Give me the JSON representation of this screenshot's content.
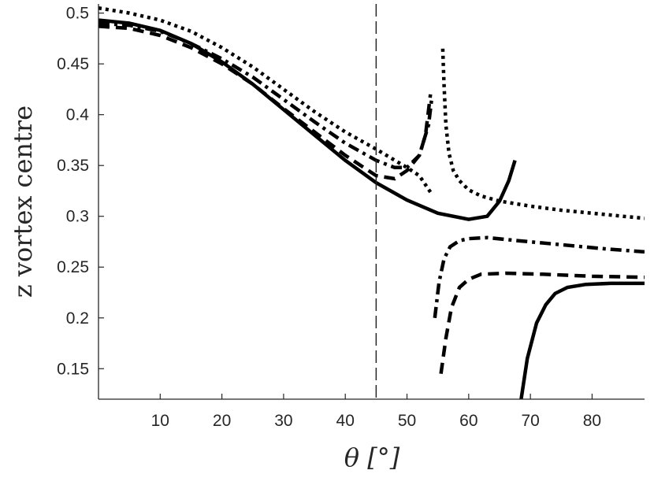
{
  "chart_data": {
    "type": "line",
    "title": "",
    "xlabel": "θ [°]",
    "ylabel": "z vortex centre",
    "xlim": [
      0,
      88.5
    ],
    "ylim": [
      0.12,
      0.509
    ],
    "xticks": [
      10,
      20,
      30,
      40,
      50,
      60,
      70,
      80
    ],
    "yticks": [
      0.15,
      0.2,
      0.25,
      0.3,
      0.35,
      0.4,
      0.45,
      0.5
    ],
    "ytick_labels": [
      "0.15",
      "0.2",
      "0.25",
      "0.3",
      "0.35",
      "0.4",
      "0.45",
      "0.5"
    ],
    "grid": false,
    "reference_line": {
      "x": 45,
      "style": "dashed-thin"
    },
    "series": [
      {
        "name": "solid",
        "style": "solid",
        "color": "#000000",
        "branches": [
          {
            "x": [
              0,
              5,
              10,
              15,
              20,
              25,
              30,
              35,
              40,
              45,
              50,
              55,
              60,
              63,
              65,
              66.5,
              67.5
            ],
            "y": [
              0.493,
              0.49,
              0.483,
              0.47,
              0.452,
              0.43,
              0.405,
              0.38,
              0.355,
              0.333,
              0.316,
              0.303,
              0.297,
              0.3,
              0.315,
              0.335,
              0.355
            ]
          },
          {
            "x": [
              68.5,
              69.5,
              71,
              72.5,
              74,
              76,
              79,
              83,
              88.5
            ],
            "y": [
              0.12,
              0.16,
              0.195,
              0.213,
              0.224,
              0.23,
              0.233,
              0.234,
              0.234
            ]
          }
        ]
      },
      {
        "name": "dashed",
        "style": "dashed",
        "color": "#000000",
        "branches": [
          {
            "x": [
              0,
              5,
              10,
              15,
              20,
              25,
              30,
              35,
              40,
              45,
              48,
              50,
              52,
              53,
              53.8
            ],
            "y": [
              0.487,
              0.485,
              0.478,
              0.466,
              0.45,
              0.43,
              0.406,
              0.383,
              0.36,
              0.34,
              0.337,
              0.345,
              0.36,
              0.38,
              0.42
            ]
          },
          {
            "x": [
              55.5,
              56.3,
              57.2,
              58.5,
              60,
              62,
              66,
              72,
              80,
              88.5
            ],
            "y": [
              0.145,
              0.18,
              0.21,
              0.23,
              0.238,
              0.243,
              0.244,
              0.243,
              0.241,
              0.24
            ]
          }
        ]
      },
      {
        "name": "dash-dot",
        "style": "dashdot",
        "color": "#000000",
        "branches": [
          {
            "x": [
              0,
              5,
              10,
              15,
              20,
              25,
              30,
              35,
              40,
              45,
              48,
              50,
              52,
              53.5,
              54
            ],
            "y": [
              0.49,
              0.488,
              0.482,
              0.47,
              0.455,
              0.437,
              0.415,
              0.393,
              0.372,
              0.355,
              0.348,
              0.348,
              0.36,
              0.39,
              0.415
            ]
          },
          {
            "x": [
              54.5,
              55.2,
              56,
              57,
              58.5,
              60,
              63,
              68,
              75,
              82,
              88.5
            ],
            "y": [
              0.2,
              0.235,
              0.258,
              0.27,
              0.276,
              0.278,
              0.279,
              0.276,
              0.272,
              0.268,
              0.265
            ]
          }
        ]
      },
      {
        "name": "dotted",
        "style": "dotted",
        "color": "#000000",
        "branches": [
          {
            "x": [
              0,
              5,
              10,
              15,
              20,
              25,
              30,
              35,
              40,
              45,
              50,
              52,
              54
            ],
            "y": [
              0.505,
              0.5,
              0.493,
              0.482,
              0.466,
              0.447,
              0.425,
              0.403,
              0.383,
              0.366,
              0.348,
              0.34,
              0.322
            ]
          },
          {
            "x": [
              55.8,
              56,
              56.3,
              56.8,
              57.5,
              58.5,
              60,
              62,
              65,
              70,
              75,
              80,
              85,
              88.5
            ],
            "y": [
              0.465,
              0.43,
              0.39,
              0.362,
              0.345,
              0.335,
              0.326,
              0.32,
              0.315,
              0.31,
              0.306,
              0.303,
              0.3,
              0.298
            ]
          }
        ]
      }
    ]
  }
}
